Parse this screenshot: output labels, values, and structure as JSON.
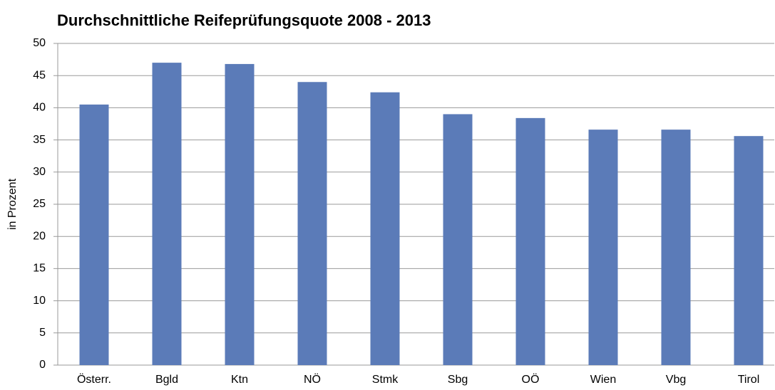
{
  "chart_data": {
    "type": "bar",
    "title": "Durchschnittliche Reifeprüfungsquote 2008 - 2013",
    "y_label": "in Prozent",
    "categories": [
      "Österr.",
      "Bgld",
      "Ktn",
      "NÖ",
      "Stmk",
      "Sbg",
      "OÖ",
      "Wien",
      "Vbg",
      "Tirol"
    ],
    "values": [
      40.5,
      47.0,
      46.8,
      44.0,
      42.4,
      39.0,
      38.4,
      36.6,
      36.6,
      35.6
    ],
    "color": "#5b7bb8",
    "ylim": [
      0,
      50
    ],
    "yticks": [
      0,
      5,
      10,
      15,
      20,
      25,
      30,
      35,
      40,
      45,
      50
    ],
    "grid": true
  }
}
